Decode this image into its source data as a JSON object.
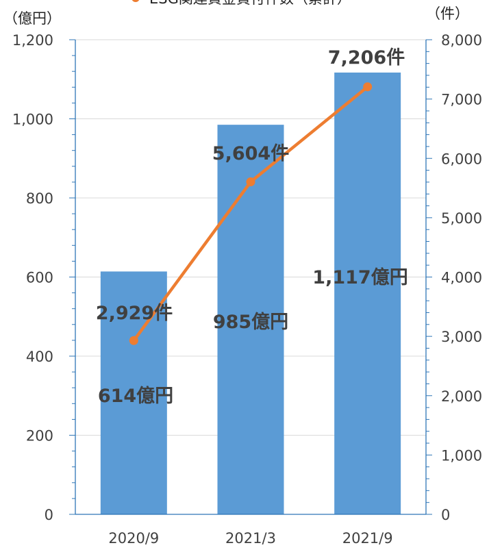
{
  "chart_data": {
    "type": "bar",
    "categories": [
      "2020/9",
      "2021/3",
      "2021/9"
    ],
    "series": [
      {
        "kind": "bar",
        "axis": "left",
        "color": "#5B9BD5",
        "values": [
          614,
          985,
          1117
        ],
        "labels": [
          "614億円",
          "985億円",
          "1,117億円"
        ]
      },
      {
        "name": "ESG関連資金貸付件数（累計）",
        "kind": "line",
        "axis": "right",
        "color": "#ED7D31",
        "values": [
          2929,
          5604,
          7206
        ],
        "labels": [
          "2,929件",
          "5,604件",
          "7,206件"
        ]
      }
    ],
    "y_left": {
      "unit": "（億円）",
      "ylim": [
        0,
        1200
      ],
      "ticks": [
        "0",
        "200",
        "400",
        "600",
        "800",
        "1,000",
        "1,200"
      ],
      "tick_values": [
        0,
        200,
        400,
        600,
        800,
        1000,
        1200
      ]
    },
    "y_right": {
      "unit": "（件）",
      "ylim": [
        0,
        8000
      ],
      "ticks": [
        "0",
        "1,000",
        "2,000",
        "3,000",
        "4,000",
        "5,000",
        "6,000",
        "7,000",
        "8,000"
      ],
      "tick_values": [
        0,
        1000,
        2000,
        3000,
        4000,
        5000,
        6000,
        7000,
        8000
      ]
    },
    "grid": true,
    "legend": "top"
  }
}
